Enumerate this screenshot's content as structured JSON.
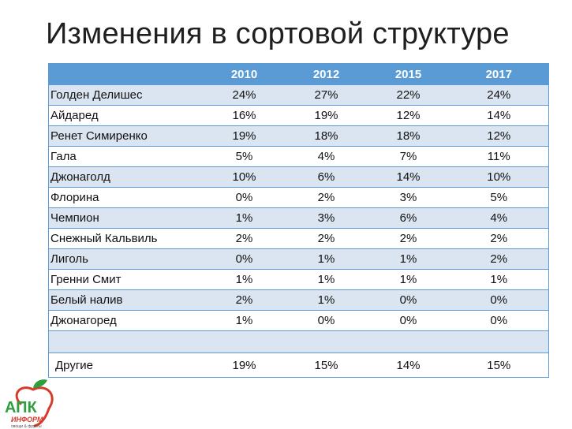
{
  "title": "Изменения в сортовой структуре",
  "table": {
    "years": [
      "2010",
      "2012",
      "2015",
      "2017"
    ],
    "rows": [
      {
        "name": "Голден Делишес",
        "values": [
          "24%",
          "27%",
          "22%",
          "24%"
        ]
      },
      {
        "name": "Айдаред",
        "values": [
          "16%",
          "19%",
          "12%",
          "14%"
        ]
      },
      {
        "name": "Ренет Симиренко",
        "values": [
          "19%",
          "18%",
          "18%",
          "12%"
        ]
      },
      {
        "name": "Гала",
        "values": [
          "5%",
          "4%",
          "7%",
          "11%"
        ]
      },
      {
        "name": "Джонаголд",
        "values": [
          "10%",
          "6%",
          "14%",
          "10%"
        ]
      },
      {
        "name": "Флорина",
        "values": [
          "0%",
          "2%",
          "3%",
          "5%"
        ]
      },
      {
        "name": "Чемпион",
        "values": [
          "1%",
          "3%",
          "6%",
          "4%"
        ]
      },
      {
        "name": "Снежный Кальвиль",
        "values": [
          "2%",
          "2%",
          "2%",
          "2%"
        ]
      },
      {
        "name": "Лиголь",
        "values": [
          "0%",
          "1%",
          "1%",
          "2%"
        ]
      },
      {
        "name": "Гренни Смит",
        "values": [
          "1%",
          "1%",
          "1%",
          "1%"
        ]
      },
      {
        "name": "Белый налив",
        "values": [
          "2%",
          "1%",
          "0%",
          "0%"
        ]
      },
      {
        "name": "Джонагоред",
        "values": [
          "1%",
          "0%",
          "0%",
          "0%"
        ]
      }
    ],
    "other": {
      "name": "Другие",
      "values": [
        "19%",
        "15%",
        "14%",
        "15%"
      ]
    }
  },
  "logo": {
    "word": "АПК",
    "sub": "ИНФОРМ",
    "tagline": "овощи & фрукты"
  },
  "colors": {
    "header": "#5b9bd5",
    "band": "#dbe5f1",
    "logo_green": "#2e9e3e",
    "logo_red": "#d63a2a"
  }
}
